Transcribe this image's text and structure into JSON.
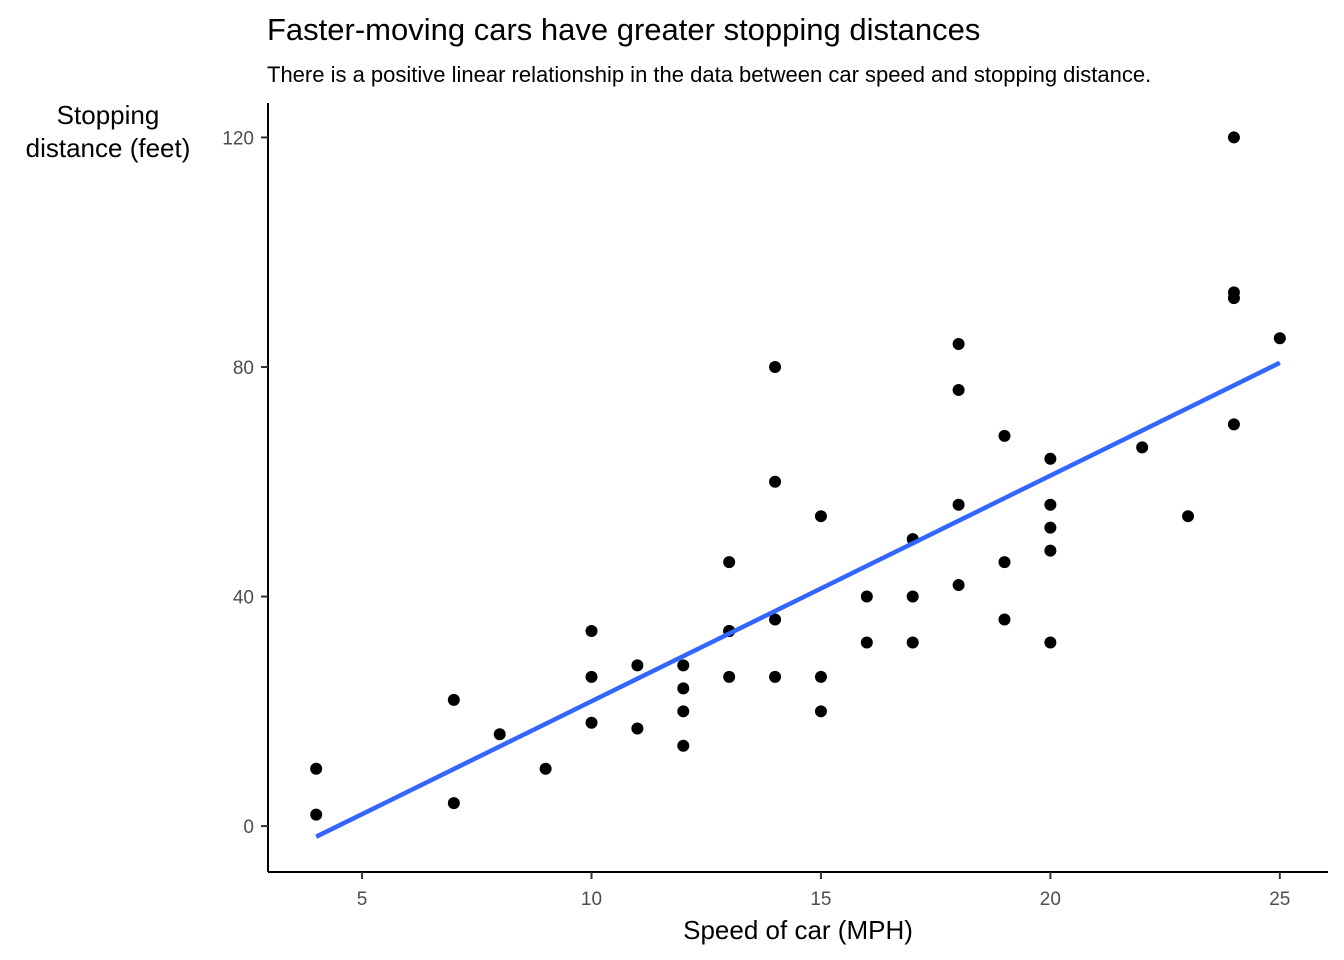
{
  "chart_data": {
    "type": "scatter",
    "title": "Faster-moving cars have greater stopping distances",
    "subtitle": "There is a positive linear relationship in the data between car speed and stopping distance.",
    "xlabel": "Speed of car (MPH)",
    "ylabel_lines": [
      "Stopping",
      "distance (feet)"
    ],
    "xlim": [
      2.95,
      26.05
    ],
    "ylim": [
      -8,
      126
    ],
    "x_ticks": [
      5,
      10,
      15,
      20,
      25
    ],
    "y_ticks": [
      0,
      40,
      80,
      120
    ],
    "grid": false,
    "legend": "none",
    "point_color": "#000000",
    "line_color": "#3366FF",
    "points": [
      {
        "x": 4,
        "y": 2
      },
      {
        "x": 4,
        "y": 10
      },
      {
        "x": 7,
        "y": 4
      },
      {
        "x": 7,
        "y": 22
      },
      {
        "x": 8,
        "y": 16
      },
      {
        "x": 9,
        "y": 10
      },
      {
        "x": 10,
        "y": 18
      },
      {
        "x": 10,
        "y": 26
      },
      {
        "x": 10,
        "y": 34
      },
      {
        "x": 11,
        "y": 17
      },
      {
        "x": 11,
        "y": 28
      },
      {
        "x": 12,
        "y": 14
      },
      {
        "x": 12,
        "y": 20
      },
      {
        "x": 12,
        "y": 24
      },
      {
        "x": 12,
        "y": 28
      },
      {
        "x": 13,
        "y": 26
      },
      {
        "x": 13,
        "y": 34
      },
      {
        "x": 13,
        "y": 34
      },
      {
        "x": 13,
        "y": 46
      },
      {
        "x": 14,
        "y": 26
      },
      {
        "x": 14,
        "y": 36
      },
      {
        "x": 14,
        "y": 60
      },
      {
        "x": 14,
        "y": 80
      },
      {
        "x": 15,
        "y": 20
      },
      {
        "x": 15,
        "y": 26
      },
      {
        "x": 15,
        "y": 54
      },
      {
        "x": 16,
        "y": 32
      },
      {
        "x": 16,
        "y": 40
      },
      {
        "x": 17,
        "y": 32
      },
      {
        "x": 17,
        "y": 40
      },
      {
        "x": 17,
        "y": 50
      },
      {
        "x": 18,
        "y": 42
      },
      {
        "x": 18,
        "y": 56
      },
      {
        "x": 18,
        "y": 76
      },
      {
        "x": 18,
        "y": 84
      },
      {
        "x": 19,
        "y": 36
      },
      {
        "x": 19,
        "y": 46
      },
      {
        "x": 19,
        "y": 68
      },
      {
        "x": 20,
        "y": 32
      },
      {
        "x": 20,
        "y": 48
      },
      {
        "x": 20,
        "y": 52
      },
      {
        "x": 20,
        "y": 56
      },
      {
        "x": 20,
        "y": 64
      },
      {
        "x": 22,
        "y": 66
      },
      {
        "x": 23,
        "y": 54
      },
      {
        "x": 24,
        "y": 70
      },
      {
        "x": 24,
        "y": 92
      },
      {
        "x": 24,
        "y": 93
      },
      {
        "x": 24,
        "y": 120
      },
      {
        "x": 25,
        "y": 85
      }
    ],
    "fit_line": {
      "x": [
        4,
        25
      ],
      "y": [
        -1.85,
        80.73
      ]
    }
  }
}
